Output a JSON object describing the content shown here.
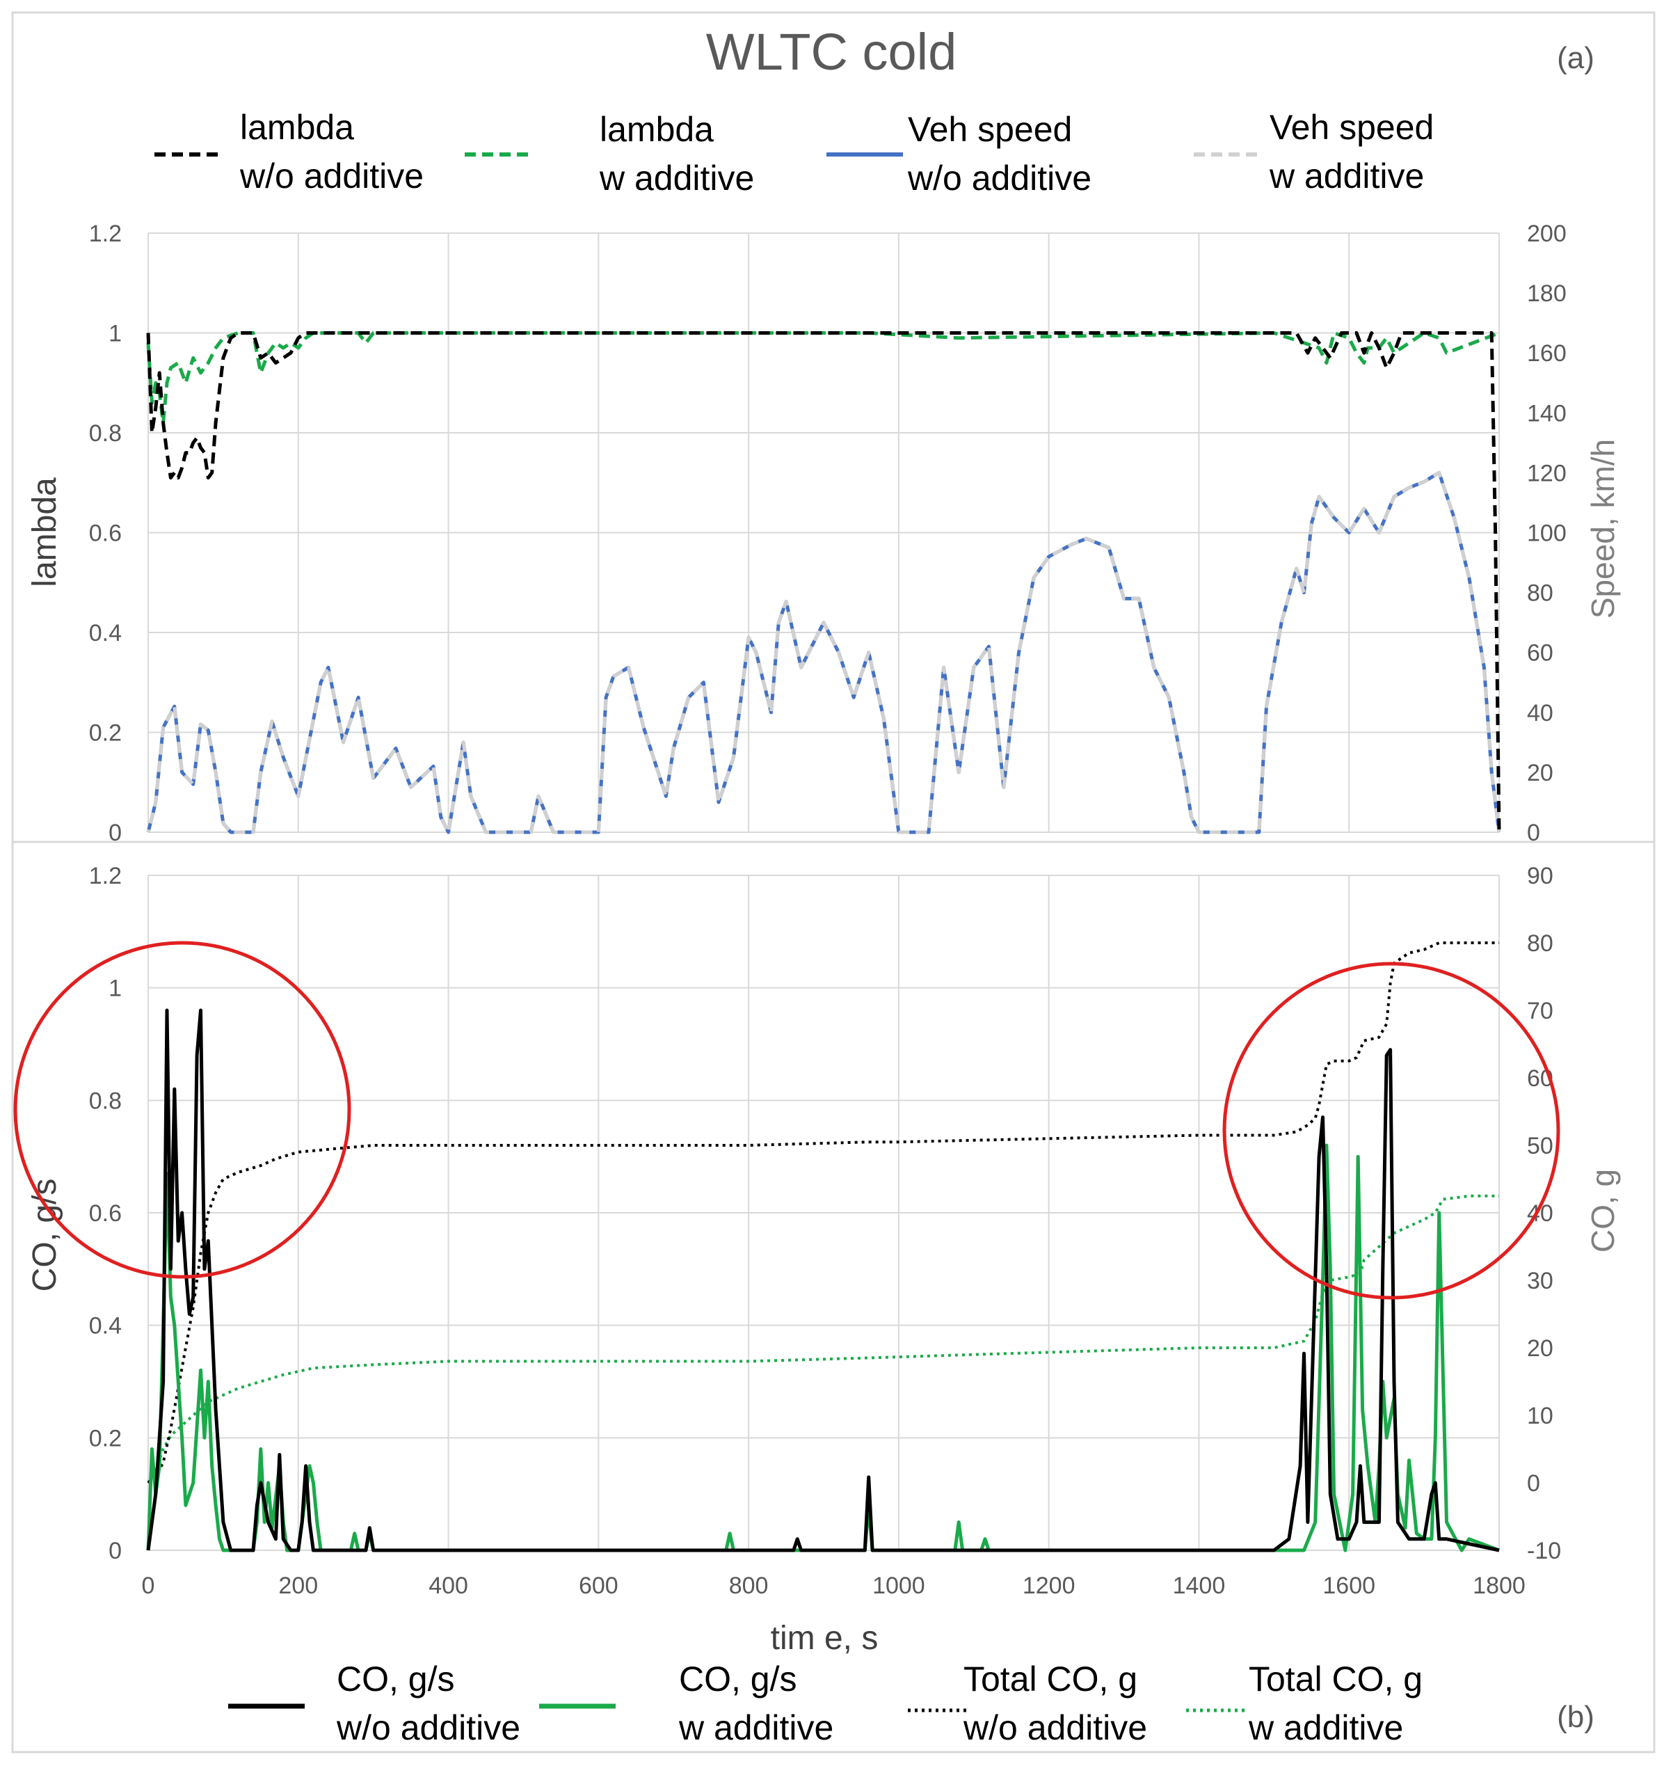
{
  "figure": {
    "title": "WLTC cold",
    "panel_a_label": "(a)",
    "panel_b_label": "(b)",
    "colors": {
      "lambda_wo": "#000000",
      "lambda_w": "#1aaa4a",
      "speed_wo": "#4472c4",
      "speed_w": "#d0d0d0",
      "co_wo": "#000000",
      "co_w": "#1aaa4a",
      "total_wo": "#000000",
      "total_w": "#1aaa4a",
      "highlight_circle": "#e02020"
    }
  },
  "chart_data": [
    {
      "type": "line",
      "panel": "(a)",
      "title": "WLTC cold",
      "xlim": [
        0,
        1800
      ],
      "ylim": [
        0,
        1.2
      ],
      "y2lim": [
        0,
        200
      ],
      "ylabel": "lambda",
      "y2label": "Speed, km/h",
      "yticks": [
        "0",
        "0.2",
        "0.4",
        "0.6",
        "0.8",
        "1",
        "1.2"
      ],
      "y2ticks": [
        "0",
        "20",
        "40",
        "60",
        "80",
        "100",
        "120",
        "140",
        "160",
        "180",
        "200"
      ],
      "grid": true,
      "legend_position": "top",
      "legend": [
        {
          "line1": "lambda",
          "line2": "w/o additive"
        },
        {
          "line1": "lambda",
          "line2": "w additive"
        },
        {
          "line1": "Veh speed",
          "line2": "w/o additive"
        },
        {
          "line1": "Veh speed",
          "line2": "w additive"
        }
      ],
      "series": [
        {
          "key": "lambda_wo",
          "axis": "left",
          "style": "dashed",
          "x": [
            0,
            5,
            10,
            15,
            20,
            25,
            30,
            35,
            40,
            45,
            50,
            55,
            60,
            65,
            70,
            75,
            80,
            85,
            90,
            100,
            110,
            120,
            140,
            150,
            160,
            170,
            180,
            190,
            200,
            210,
            220,
            260,
            280,
            300,
            400,
            800,
            960,
            1000,
            1400,
            1500,
            1530,
            1545,
            1555,
            1565,
            1575,
            1590,
            1610,
            1620,
            1630,
            1640,
            1650,
            1660,
            1670,
            1680,
            1700,
            1720,
            1750,
            1790,
            1795,
            1800
          ],
          "y": [
            1.0,
            0.8,
            0.85,
            0.92,
            0.82,
            0.76,
            0.71,
            0.72,
            0.71,
            0.73,
            0.76,
            0.76,
            0.78,
            0.79,
            0.77,
            0.76,
            0.71,
            0.72,
            0.82,
            0.95,
            0.99,
            1.0,
            1.0,
            0.95,
            0.96,
            0.94,
            0.95,
            0.96,
            0.99,
            1.0,
            1.0,
            1.0,
            1.0,
            1.0,
            1.0,
            1.0,
            1.0,
            1.0,
            1.0,
            1.0,
            1.0,
            0.96,
            0.99,
            0.97,
            0.95,
            1.0,
            1.0,
            0.96,
            1.0,
            0.97,
            0.93,
            0.96,
            1.0,
            1.0,
            1.0,
            1.0,
            1.0,
            1.0,
            0.6,
            0.0
          ]
        },
        {
          "key": "lambda_w",
          "axis": "left",
          "style": "dashed",
          "x": [
            0,
            5,
            10,
            15,
            20,
            25,
            30,
            40,
            50,
            60,
            70,
            80,
            90,
            100,
            120,
            140,
            150,
            160,
            170,
            180,
            190,
            200,
            210,
            220,
            280,
            290,
            300,
            960,
            1080,
            1500,
            1560,
            1570,
            1580,
            1600,
            1610,
            1620,
            1625,
            1640,
            1650,
            1660,
            1700,
            1720,
            1730,
            1800
          ],
          "y": [
            0.98,
            0.86,
            0.9,
            0.88,
            0.82,
            0.9,
            0.93,
            0.94,
            0.9,
            0.95,
            0.92,
            0.94,
            0.97,
            0.99,
            1.0,
            1.0,
            0.92,
            0.96,
            0.98,
            0.97,
            0.98,
            0.97,
            0.99,
            1.0,
            1.0,
            0.98,
            1.0,
            1.0,
            0.99,
            1.0,
            0.97,
            0.94,
            1.0,
            0.99,
            0.96,
            0.94,
            0.97,
            0.97,
            0.99,
            0.96,
            1.0,
            0.99,
            0.96,
            1.0
          ]
        },
        {
          "key": "speed_wo",
          "axis": "right",
          "style": "solid",
          "x": [
            0,
            10,
            20,
            35,
            45,
            60,
            70,
            80,
            90,
            100,
            110,
            140,
            150,
            165,
            180,
            200,
            230,
            240,
            260,
            280,
            300,
            330,
            350,
            380,
            390,
            400,
            420,
            430,
            450,
            510,
            520,
            540,
            560,
            570,
            600,
            610,
            620,
            640,
            660,
            690,
            700,
            720,
            740,
            760,
            780,
            800,
            810,
            830,
            840,
            850,
            870,
            900,
            920,
            940,
            960,
            980,
            1000,
            1020,
            1040,
            1060,
            1080,
            1100,
            1120,
            1140,
            1160,
            1180,
            1200,
            1230,
            1250,
            1280,
            1300,
            1320,
            1340,
            1360,
            1380,
            1390,
            1400,
            1420,
            1440,
            1460,
            1480,
            1490,
            1500,
            1510,
            1530,
            1540,
            1550,
            1560,
            1580,
            1600,
            1620,
            1640,
            1660,
            1680,
            1700,
            1720,
            1740,
            1760,
            1780,
            1790,
            1800
          ],
          "y": [
            0,
            10,
            35,
            42,
            20,
            16,
            36,
            34,
            20,
            3,
            0,
            0,
            20,
            37,
            25,
            12,
            50,
            55,
            30,
            45,
            18,
            28,
            15,
            22,
            5,
            0,
            30,
            12,
            0,
            0,
            12,
            0,
            0,
            0,
            0,
            45,
            52,
            55,
            35,
            12,
            28,
            45,
            50,
            10,
            25,
            65,
            60,
            40,
            70,
            77,
            55,
            70,
            60,
            45,
            60,
            38,
            0,
            0,
            0,
            55,
            20,
            55,
            62,
            15,
            60,
            85,
            92,
            96,
            98,
            95,
            78,
            78,
            55,
            45,
            20,
            5,
            0,
            0,
            0,
            0,
            0,
            42,
            56,
            70,
            88,
            80,
            103,
            112,
            105,
            100,
            108,
            100,
            112,
            115,
            117,
            120,
            105,
            85,
            55,
            20,
            0
          ]
        },
        {
          "key": "speed_w",
          "axis": "right",
          "style": "dashed",
          "same_as": "speed_wo"
        }
      ]
    },
    {
      "type": "line",
      "panel": "(b)",
      "xlim": [
        0,
        1800
      ],
      "xticks": [
        "0",
        "200",
        "400",
        "600",
        "800",
        "1000",
        "1200",
        "1400",
        "1600",
        "1800"
      ],
      "xlabel": "tim e, s",
      "ylim": [
        0,
        1.2
      ],
      "y2lim": [
        -10,
        90
      ],
      "ylabel": "CO, g/s",
      "y2label": "CO, g",
      "yticks": [
        "0",
        "0.2",
        "0.4",
        "0.6",
        "0.8",
        "1",
        "1.2"
      ],
      "y2ticks": [
        "-10",
        "0",
        "10",
        "20",
        "30",
        "40",
        "50",
        "60",
        "70",
        "80",
        "90"
      ],
      "grid": true,
      "legend_position": "bottom",
      "legend": [
        {
          "line1": "CO, g/s",
          "line2": "w/o additive"
        },
        {
          "line1": "CO, g/s",
          "line2": "w additive"
        },
        {
          "line1": "Total CO, g",
          "line2": "w/o additive"
        },
        {
          "line1": "Total CO, g",
          "line2": "w additive"
        }
      ],
      "annotations": [
        "red circle around 0–250 s",
        "red circle around 1500–1700 s"
      ],
      "series": [
        {
          "key": "co_wo",
          "axis": "left",
          "style": "solid",
          "x": [
            0,
            10,
            20,
            25,
            30,
            35,
            40,
            45,
            50,
            55,
            60,
            65,
            70,
            75,
            80,
            85,
            90,
            100,
            110,
            140,
            145,
            150,
            160,
            170,
            175,
            180,
            190,
            200,
            205,
            210,
            215,
            220,
            290,
            295,
            300,
            860,
            865,
            870,
            955,
            960,
            965,
            1000,
            1500,
            1520,
            1535,
            1540,
            1545,
            1560,
            1565,
            1570,
            1575,
            1585,
            1600,
            1610,
            1615,
            1620,
            1640,
            1645,
            1650,
            1655,
            1660,
            1665,
            1680,
            1700,
            1710,
            1715,
            1720,
            1730,
            1800
          ],
          "y": [
            0.0,
            0.1,
            0.3,
            0.96,
            0.5,
            0.82,
            0.55,
            0.6,
            0.5,
            0.42,
            0.45,
            0.88,
            0.96,
            0.5,
            0.55,
            0.4,
            0.25,
            0.05,
            0.0,
            0.0,
            0.08,
            0.12,
            0.05,
            0.02,
            0.17,
            0.02,
            0.0,
            0.0,
            0.05,
            0.15,
            0.05,
            0.0,
            0.0,
            0.04,
            0.0,
            0.0,
            0.02,
            0.0,
            0.0,
            0.13,
            0.0,
            0.0,
            0.0,
            0.02,
            0.15,
            0.35,
            0.05,
            0.7,
            0.77,
            0.5,
            0.1,
            0.02,
            0.02,
            0.05,
            0.15,
            0.05,
            0.05,
            0.5,
            0.88,
            0.89,
            0.3,
            0.05,
            0.02,
            0.02,
            0.1,
            0.12,
            0.02,
            0.02,
            0.0
          ]
        },
        {
          "key": "co_w",
          "axis": "left",
          "style": "solid",
          "x": [
            0,
            5,
            10,
            15,
            20,
            25,
            30,
            35,
            40,
            45,
            50,
            60,
            70,
            75,
            80,
            85,
            90,
            95,
            100,
            110,
            140,
            145,
            150,
            155,
            160,
            165,
            175,
            180,
            185,
            200,
            210,
            215,
            220,
            225,
            230,
            270,
            275,
            280,
            290,
            295,
            300,
            770,
            775,
            780,
            955,
            960,
            965,
            1075,
            1080,
            1085,
            1110,
            1115,
            1120,
            1500,
            1540,
            1555,
            1565,
            1570,
            1575,
            1580,
            1595,
            1605,
            1612,
            1618,
            1625,
            1635,
            1640,
            1645,
            1650,
            1660,
            1665,
            1675,
            1680,
            1690,
            1700,
            1710,
            1715,
            1720,
            1730,
            1750,
            1760,
            1800
          ],
          "y": [
            0.0,
            0.18,
            0.1,
            0.15,
            0.4,
            0.67,
            0.45,
            0.4,
            0.3,
            0.2,
            0.08,
            0.12,
            0.32,
            0.2,
            0.3,
            0.15,
            0.08,
            0.02,
            0.0,
            0.0,
            0.0,
            0.05,
            0.18,
            0.05,
            0.12,
            0.04,
            0.15,
            0.05,
            0.0,
            0.0,
            0.1,
            0.15,
            0.12,
            0.05,
            0.0,
            0.0,
            0.03,
            0.0,
            0.0,
            0.03,
            0.0,
            0.0,
            0.03,
            0.0,
            0.0,
            0.08,
            0.0,
            0.0,
            0.05,
            0.0,
            0.0,
            0.02,
            0.0,
            0.0,
            0.0,
            0.05,
            0.48,
            0.72,
            0.5,
            0.1,
            0.0,
            0.1,
            0.7,
            0.25,
            0.15,
            0.05,
            0.15,
            0.3,
            0.2,
            0.27,
            0.1,
            0.04,
            0.16,
            0.03,
            0.02,
            0.02,
            0.2,
            0.6,
            0.05,
            0.0,
            0.02,
            0.0
          ]
        },
        {
          "key": "total_wo",
          "axis": "right",
          "style": "dotted",
          "x": [
            0,
            10,
            20,
            30,
            40,
            50,
            60,
            70,
            80,
            90,
            100,
            120,
            150,
            170,
            200,
            250,
            300,
            500,
            800,
            960,
            1000,
            1200,
            1400,
            1500,
            1530,
            1545,
            1555,
            1560,
            1570,
            1580,
            1600,
            1610,
            1620,
            1640,
            1650,
            1655,
            1660,
            1680,
            1700,
            1720,
            1760,
            1800
          ],
          "y": [
            0,
            1,
            3,
            8,
            14,
            20,
            26,
            34,
            40,
            43,
            45,
            46,
            47,
            48,
            49,
            49.5,
            50,
            50,
            50,
            50.5,
            50.5,
            51,
            51.5,
            51.5,
            52,
            53,
            54,
            56,
            62,
            62.5,
            62.5,
            63,
            65.5,
            66,
            68,
            74,
            77,
            78.5,
            79,
            80,
            80,
            80
          ]
        },
        {
          "key": "total_w",
          "axis": "right",
          "style": "dotted",
          "x": [
            0,
            10,
            20,
            30,
            40,
            60,
            80,
            100,
            120,
            150,
            180,
            200,
            220,
            300,
            400,
            800,
            960,
            1100,
            1400,
            1500,
            1540,
            1555,
            1565,
            1575,
            1600,
            1615,
            1620,
            1640,
            1650,
            1660,
            1680,
            1700,
            1715,
            1725,
            1760,
            1800
          ],
          "y": [
            0,
            2,
            5,
            7,
            8,
            10,
            12,
            13,
            14,
            15,
            16,
            16.5,
            17,
            17.5,
            18,
            18,
            18.5,
            19,
            20,
            20,
            21,
            24,
            28,
            30,
            30.5,
            31,
            33,
            35,
            36,
            37,
            38,
            39,
            40,
            42,
            42.5,
            42.5
          ]
        }
      ]
    }
  ]
}
